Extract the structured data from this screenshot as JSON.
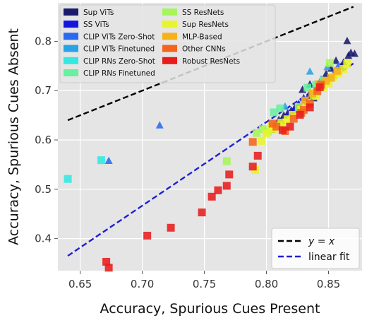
{
  "chart_data": {
    "type": "scatter",
    "xlabel": "Accuracy, Spurious Cues Present",
    "ylabel": "Accuracy, Spurious Cues Absent",
    "xlim": [
      0.632,
      0.877
    ],
    "ylim": [
      0.335,
      0.878
    ],
    "xticks": [
      0.65,
      0.7,
      0.75,
      0.8,
      0.85
    ],
    "xtick_labels": [
      "0.65",
      "0.70",
      "0.75",
      "0.80",
      "0.85"
    ],
    "yticks": [
      0.4,
      0.5,
      0.6,
      0.7,
      0.8
    ],
    "ytick_labels": [
      "0.4",
      "0.5",
      "0.6",
      "0.7",
      "0.8"
    ],
    "grid": true,
    "background": "#e5e5e5",
    "legend_groups": [
      {
        "name": "Sup ViTs",
        "color": "#1a1a6e",
        "marker": "triangle"
      },
      {
        "name": "SS ViTs",
        "color": "#1515e0",
        "marker": "triangle"
      },
      {
        "name": "CLIP ViTs Zero-Shot",
        "color": "#2a6af0",
        "marker": "triangle"
      },
      {
        "name": "CLIP ViTs Finetuned",
        "color": "#29a3e6",
        "marker": "triangle"
      },
      {
        "name": "CLIP RNs Zero-Shot",
        "color": "#33e8e0",
        "marker": "square"
      },
      {
        "name": "CLIP RNs Finetuned",
        "color": "#66f0a0",
        "marker": "square"
      },
      {
        "name": "SS ResNets",
        "color": "#a6f55a",
        "marker": "square"
      },
      {
        "name": "Sup ResNets",
        "color": "#e8f52a",
        "marker": "square"
      },
      {
        "name": "MLP-Based",
        "color": "#f7b21a",
        "marker": "square"
      },
      {
        "name": "Other CNNs",
        "color": "#f5641c",
        "marker": "square"
      },
      {
        "name": "Robust ResNets",
        "color": "#e81c1c",
        "marker": "square"
      }
    ],
    "reference_lines": [
      {
        "label": "y = x",
        "style": "dashed",
        "color": "#000000",
        "points": [
          [
            0.64,
            0.64
          ],
          [
            0.87,
            0.87
          ]
        ]
      },
      {
        "label": "linear fit",
        "style": "dashed",
        "color": "#1f1fd6",
        "points": [
          [
            0.64,
            0.365
          ],
          [
            0.87,
            0.755
          ]
        ]
      }
    ],
    "series": [
      {
        "group": 0,
        "points": [
          [
            0.871,
            0.774
          ],
          [
            0.868,
            0.776
          ],
          [
            0.865,
            0.8
          ],
          [
            0.862,
            0.756
          ],
          [
            0.858,
            0.739
          ],
          [
            0.854,
            0.731
          ],
          [
            0.849,
            0.724
          ],
          [
            0.844,
            0.708
          ],
          [
            0.84,
            0.697
          ],
          [
            0.836,
            0.689
          ],
          [
            0.832,
            0.68
          ],
          [
            0.826,
            0.671
          ],
          [
            0.82,
            0.659
          ],
          [
            0.814,
            0.649
          ],
          [
            0.81,
            0.64
          ],
          [
            0.806,
            0.628
          ],
          [
            0.823,
            0.665
          ],
          [
            0.829,
            0.701
          ],
          [
            0.833,
            0.676
          ],
          [
            0.845,
            0.718
          ],
          [
            0.852,
            0.744
          ],
          [
            0.856,
            0.76
          ],
          [
            0.838,
            0.684
          ],
          [
            0.86,
            0.748
          ],
          [
            0.804,
            0.62
          ],
          [
            0.817,
            0.653
          ],
          [
            0.842,
            0.71
          ],
          [
            0.848,
            0.733
          ],
          [
            0.835,
            0.712
          ],
          [
            0.866,
            0.77
          ],
          [
            0.812,
            0.638
          ]
        ]
      },
      {
        "group": 1,
        "points": [
          [
            0.83,
            0.684
          ],
          [
            0.826,
            0.672
          ],
          [
            0.822,
            0.66
          ],
          [
            0.818,
            0.652
          ],
          [
            0.834,
            0.69
          ]
        ]
      },
      {
        "group": 2,
        "points": [
          [
            0.714,
            0.629
          ],
          [
            0.673,
            0.557
          ],
          [
            0.858,
            0.75
          ]
        ]
      },
      {
        "group": 3,
        "points": [
          [
            0.835,
            0.738
          ],
          [
            0.844,
            0.722
          ],
          [
            0.815,
            0.667
          ],
          [
            0.849,
            0.747
          ]
        ]
      },
      {
        "group": 4,
        "points": [
          [
            0.64,
            0.521
          ],
          [
            0.667,
            0.559
          ]
        ]
      },
      {
        "group": 5,
        "points": [
          [
            0.811,
            0.664
          ],
          [
            0.833,
            0.706
          ],
          [
            0.846,
            0.72
          ],
          [
            0.806,
            0.656
          ],
          [
            0.84,
            0.712
          ]
        ]
      },
      {
        "group": 6,
        "points": [
          [
            0.797,
            0.622
          ],
          [
            0.801,
            0.617
          ],
          [
            0.81,
            0.629
          ],
          [
            0.826,
            0.667
          ],
          [
            0.838,
            0.69
          ],
          [
            0.851,
            0.756
          ],
          [
            0.768,
            0.557
          ],
          [
            0.804,
            0.624
          ],
          [
            0.792,
            0.614
          ]
        ]
      },
      {
        "group": 7,
        "points": [
          [
            0.791,
            0.539
          ],
          [
            0.8,
            0.613
          ],
          [
            0.804,
            0.628
          ],
          [
            0.812,
            0.635
          ],
          [
            0.817,
            0.642
          ],
          [
            0.821,
            0.651
          ],
          [
            0.833,
            0.671
          ],
          [
            0.846,
            0.706
          ],
          [
            0.854,
            0.728
          ],
          [
            0.862,
            0.744
          ],
          [
            0.865,
            0.754
          ],
          [
            0.796,
            0.598
          ],
          [
            0.828,
            0.661
          ],
          [
            0.84,
            0.689
          ],
          [
            0.85,
            0.714
          ],
          [
            0.806,
            0.621
          ],
          [
            0.858,
            0.735
          ]
        ]
      },
      {
        "group": 8,
        "points": [
          [
            0.837,
            0.694
          ],
          [
            0.842,
            0.713
          ],
          [
            0.848,
            0.72
          ],
          [
            0.852,
            0.726
          ],
          [
            0.857,
            0.74
          ],
          [
            0.831,
            0.68
          ]
        ]
      },
      {
        "group": 9,
        "points": [
          [
            0.789,
            0.596
          ],
          [
            0.808,
            0.627
          ],
          [
            0.815,
            0.618
          ],
          [
            0.822,
            0.643
          ],
          [
            0.83,
            0.661
          ],
          [
            0.835,
            0.674
          ],
          [
            0.841,
            0.699
          ],
          [
            0.844,
            0.712
          ],
          [
            0.828,
            0.655
          ],
          [
            0.805,
            0.633
          ]
        ]
      },
      {
        "group": 10,
        "points": [
          [
            0.671,
            0.353
          ],
          [
            0.673,
            0.341
          ],
          [
            0.704,
            0.406
          ],
          [
            0.723,
            0.422
          ],
          [
            0.748,
            0.453
          ],
          [
            0.756,
            0.485
          ],
          [
            0.761,
            0.498
          ],
          [
            0.768,
            0.507
          ],
          [
            0.77,
            0.53
          ],
          [
            0.789,
            0.546
          ],
          [
            0.793,
            0.568
          ],
          [
            0.813,
            0.62
          ],
          [
            0.827,
            0.651
          ],
          [
            0.835,
            0.666
          ],
          [
            0.843,
            0.707
          ],
          [
            0.819,
            0.627
          ]
        ]
      }
    ]
  },
  "legend_lines": [
    {
      "label": "y = x",
      "color": "#000000"
    },
    {
      "label": "linear fit",
      "color": "#1f1fd6"
    }
  ]
}
